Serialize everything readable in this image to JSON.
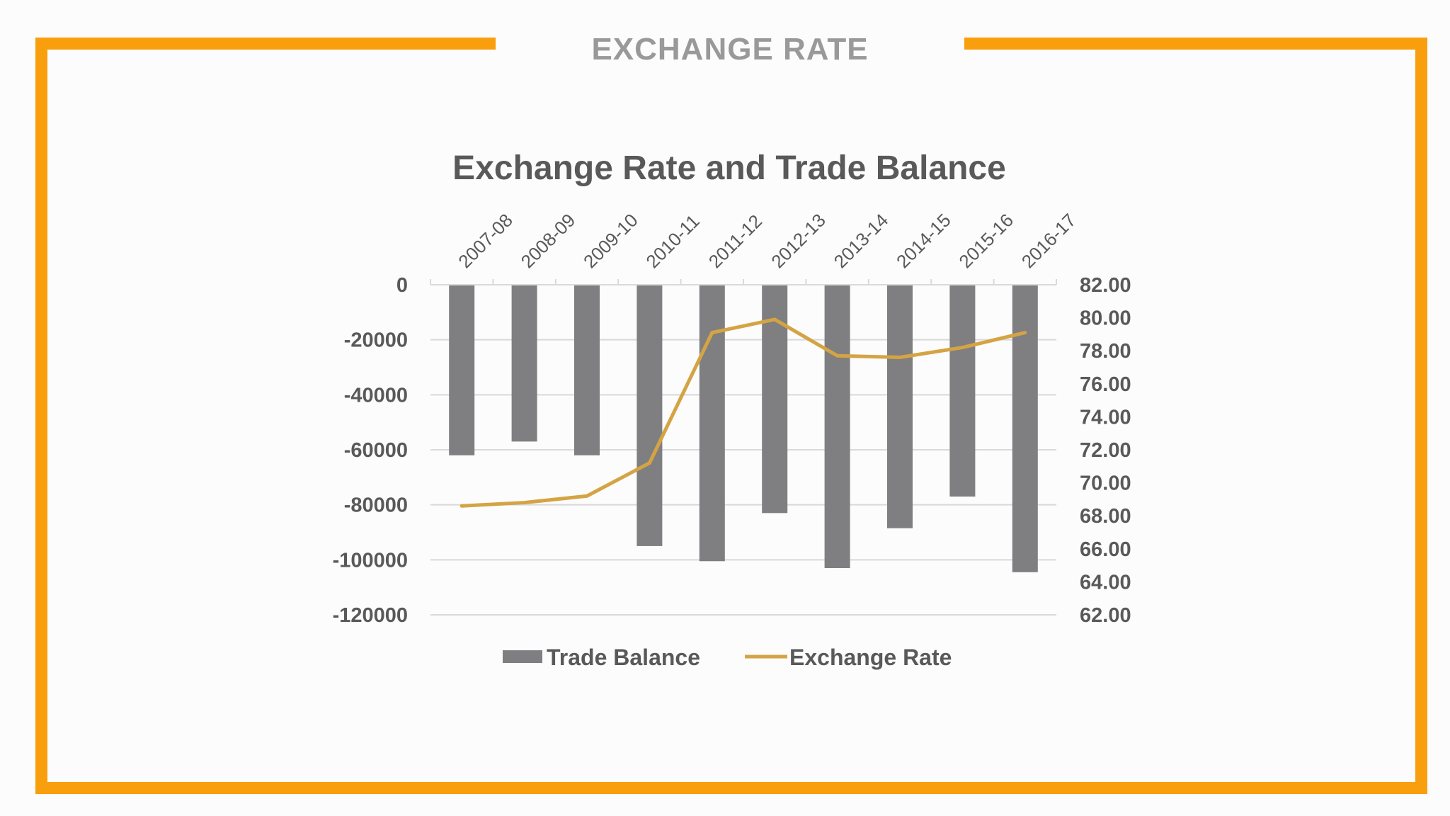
{
  "page": {
    "title": "EXCHANGE RATE"
  },
  "colors": {
    "frame": "#f99e0d",
    "bar": "#7f7e80",
    "line": "#d4a444",
    "grid": "#d9d9d9",
    "text": "#595959"
  },
  "chart_data": {
    "type": "bar",
    "title": "Exchange Rate and Trade Balance",
    "categories": [
      "2007-08",
      "2008-09",
      "2009-10",
      "2010-11",
      "2011-12",
      "2012-13",
      "2013-14",
      "2014-15",
      "2015-16",
      "2016-17"
    ],
    "series": [
      {
        "name": "Trade Balance",
        "type": "bar",
        "axis": "left",
        "values": [
          -62000,
          -57000,
          -62000,
          -95000,
          -100500,
          -83000,
          -103000,
          -88500,
          -77000,
          -104500
        ]
      },
      {
        "name": "Exchange Rate",
        "type": "line",
        "axis": "right",
        "values": [
          68.6,
          68.8,
          69.2,
          71.2,
          79.1,
          79.9,
          77.7,
          77.6,
          78.2,
          79.1
        ]
      }
    ],
    "y_left": {
      "range": [
        -120000,
        0
      ],
      "ticks": [
        "0",
        "-20000",
        "-40000",
        "-60000",
        "-80000",
        "-100000",
        "-120000"
      ]
    },
    "y_right": {
      "range": [
        62,
        82
      ],
      "ticks": [
        "82.00",
        "80.00",
        "78.00",
        "76.00",
        "74.00",
        "72.00",
        "70.00",
        "68.00",
        "66.00",
        "64.00",
        "62.00"
      ]
    },
    "grid": true,
    "legend": "bottom",
    "x_axis_position": "top"
  }
}
